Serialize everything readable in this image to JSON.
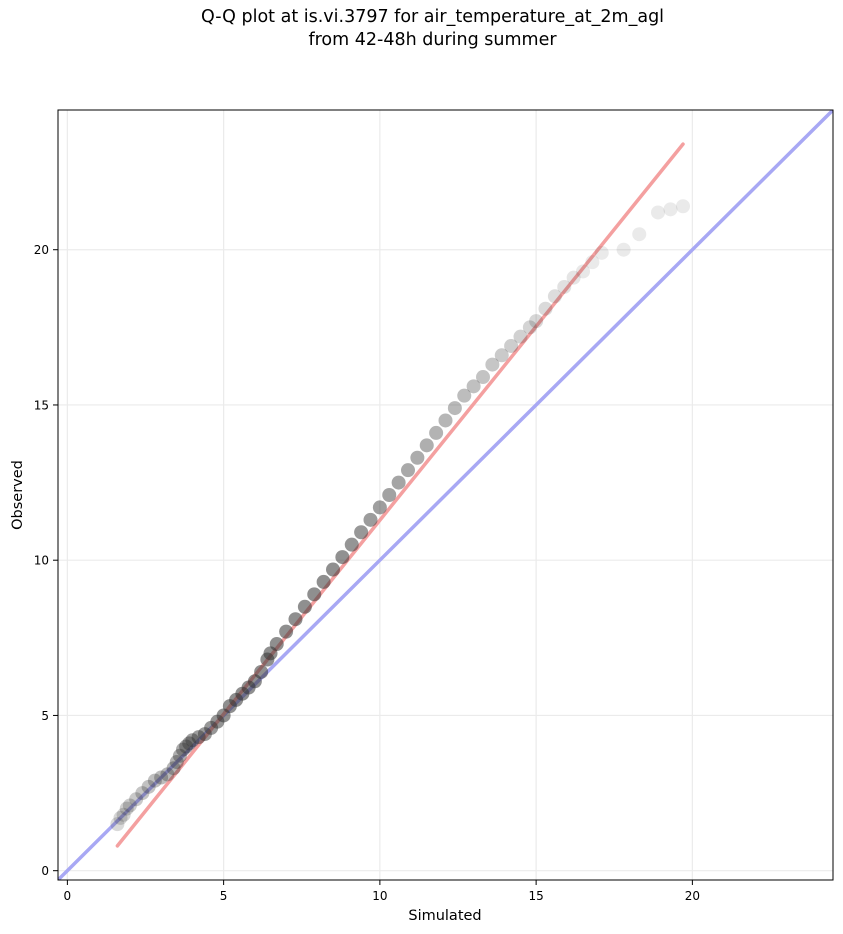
{
  "chart_data": {
    "type": "scatter",
    "title_lines": [
      "Q-Q plot at is.vi.3797 for air_temperature_at_2m_agl",
      "from 42-48h during summer"
    ],
    "xlabel": "Simulated",
    "ylabel": "Observed",
    "xlim": [
      -0.3,
      24.5
    ],
    "ylim": [
      -0.3,
      24.5
    ],
    "xticks": [
      0,
      5,
      10,
      15,
      20
    ],
    "yticks": [
      0,
      5,
      10,
      15,
      20
    ],
    "grid": true,
    "colors": {
      "points": "#333333",
      "fit_line": "#f4a0a0",
      "identity_line": "#a8a8f4",
      "grid": "#ebebeb"
    },
    "fit_line": {
      "x": [
        1.6,
        19.7
      ],
      "y": [
        0.8,
        23.4
      ]
    },
    "identity_line": {
      "x": [
        -0.3,
        24.5
      ],
      "y": [
        -0.3,
        24.5
      ]
    },
    "points": {
      "x": [
        1.6,
        1.7,
        1.8,
        1.9,
        2.0,
        2.2,
        2.4,
        2.6,
        2.8,
        3.0,
        3.2,
        3.4,
        3.5,
        3.6,
        3.7,
        3.8,
        3.9,
        4.0,
        4.2,
        4.4,
        4.6,
        4.8,
        5.0,
        5.2,
        5.4,
        5.6,
        5.8,
        6.0,
        6.2,
        6.4,
        6.5,
        6.7,
        7.0,
        7.3,
        7.6,
        7.9,
        8.2,
        8.5,
        8.8,
        9.1,
        9.4,
        9.7,
        10.0,
        10.3,
        10.6,
        10.9,
        11.2,
        11.5,
        11.8,
        12.1,
        12.4,
        12.7,
        13.0,
        13.3,
        13.6,
        13.9,
        14.2,
        14.5,
        14.8,
        15.0,
        15.3,
        15.6,
        15.9,
        16.2,
        16.5,
        16.8,
        17.1,
        17.8,
        18.3,
        18.9,
        19.3,
        19.7
      ],
      "y": [
        1.5,
        1.7,
        1.8,
        2.0,
        2.1,
        2.3,
        2.5,
        2.7,
        2.9,
        3.0,
        3.1,
        3.3,
        3.5,
        3.7,
        3.9,
        4.0,
        4.1,
        4.2,
        4.3,
        4.4,
        4.6,
        4.8,
        5.0,
        5.3,
        5.5,
        5.7,
        5.9,
        6.1,
        6.4,
        6.8,
        7.0,
        7.3,
        7.7,
        8.1,
        8.5,
        8.9,
        9.3,
        9.7,
        10.1,
        10.5,
        10.9,
        11.3,
        11.7,
        12.1,
        12.5,
        12.9,
        13.3,
        13.7,
        14.1,
        14.5,
        14.9,
        15.3,
        15.6,
        15.9,
        16.3,
        16.6,
        16.9,
        17.2,
        17.5,
        17.7,
        18.1,
        18.5,
        18.8,
        19.1,
        19.3,
        19.6,
        19.9,
        20.0,
        20.5,
        21.2,
        21.3,
        21.4
      ]
    }
  }
}
